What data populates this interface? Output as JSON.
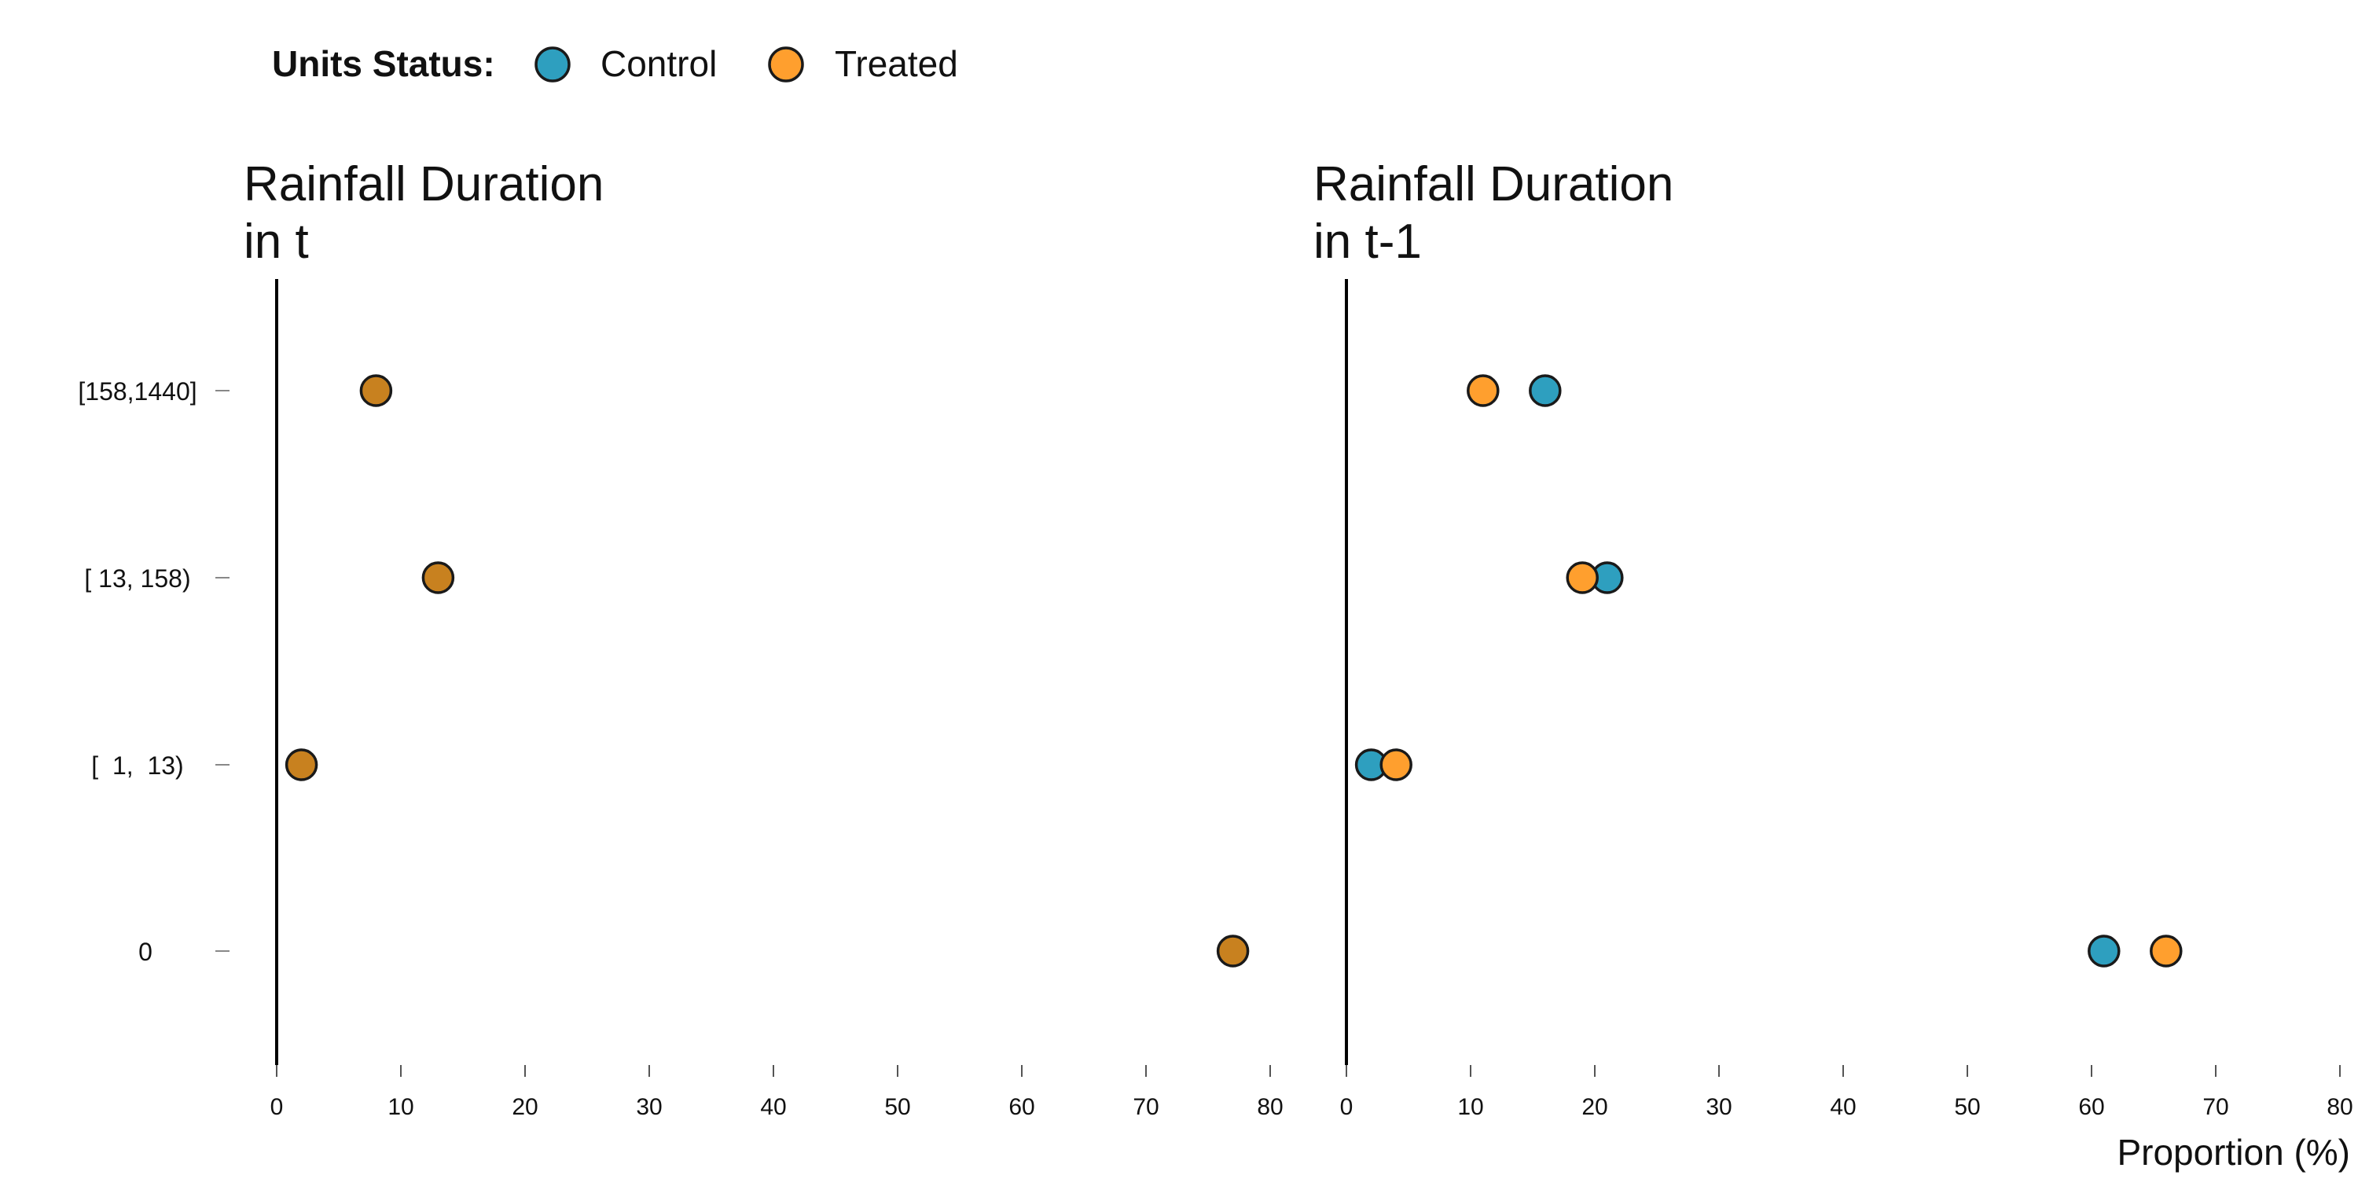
{
  "legend": {
    "title": "Units Status:",
    "entries": [
      {
        "label": "Control",
        "color": "#2E9FBF"
      },
      {
        "label": "Treated",
        "color": "#FF9F2E"
      }
    ]
  },
  "chart_data": {
    "type": "scatter",
    "categories": [
      "[158,1440]",
      "[ 13, 158)",
      "[  1,  13)",
      "0"
    ],
    "xlabel": "Proportion (%)",
    "overlap_color": "#C8811F",
    "panels": [
      {
        "title_lines": [
          "Rainfall Duration",
          "in t"
        ],
        "xlim": [
          0,
          80
        ],
        "xticks": [
          0,
          10,
          20,
          30,
          40,
          50,
          60,
          70,
          80
        ],
        "series": [
          {
            "name": "Control",
            "values": [
              8,
              13,
              2,
              77
            ]
          },
          {
            "name": "Treated",
            "values": [
              8,
              13,
              2,
              77
            ]
          }
        ]
      },
      {
        "title_lines": [
          "Rainfall Duration",
          "in t-1"
        ],
        "xlim": [
          0,
          80
        ],
        "xticks": [
          0,
          10,
          20,
          30,
          40,
          50,
          60,
          70,
          80
        ],
        "series": [
          {
            "name": "Control",
            "values": [
              16,
              21,
              2,
              61
            ]
          },
          {
            "name": "Treated",
            "values": [
              11,
              19,
              4,
              66
            ]
          }
        ]
      }
    ],
    "grid": false,
    "legend_position": "top-left"
  }
}
